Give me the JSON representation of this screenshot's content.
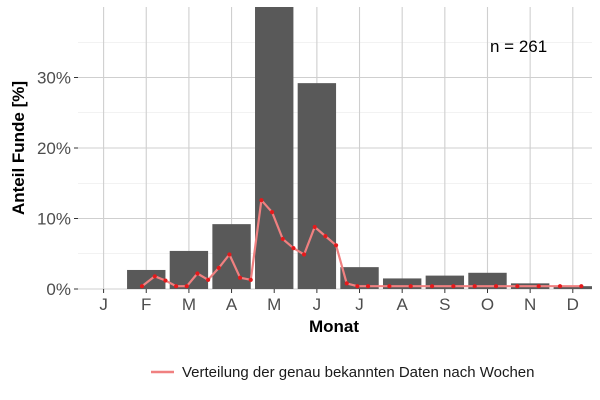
{
  "chart_data": {
    "type": "bar",
    "xlabel": "Monat",
    "ylabel": "Anteil Funde [%]",
    "annotation": "n = 261",
    "categories": [
      "J",
      "F",
      "M",
      "A",
      "M",
      "J",
      "J",
      "A",
      "S",
      "O",
      "N",
      "D"
    ],
    "y_ticks": [
      "0%",
      "10%",
      "20%",
      "30%"
    ],
    "ylim": [
      0,
      40
    ],
    "grid": true,
    "legend_position": "bottom-right",
    "bar_color": "#595959",
    "line_color": "#f08080",
    "point_color": "#e41a1c",
    "bars": {
      "values": [
        0,
        2.7,
        5.4,
        9.2,
        40.0,
        29.2,
        3.1,
        1.5,
        1.9,
        2.3,
        0.8,
        0.4
      ]
    },
    "series": [
      {
        "name": "Verteilung der genau bekannten Daten nach Wochen",
        "x": [
          1.9,
          2.2,
          2.45,
          2.7,
          2.95,
          3.2,
          3.45,
          3.7,
          3.95,
          4.2,
          4.45,
          4.7,
          4.95,
          5.2,
          5.45,
          5.7,
          5.95,
          6.2,
          6.45,
          6.7,
          6.95,
          7.2,
          7.7,
          8.2,
          8.7,
          9.2,
          9.7,
          10.2,
          10.7,
          11.2,
          11.7,
          12.2
        ],
        "y": [
          0.4,
          1.8,
          1.2,
          0.4,
          0.4,
          2.2,
          1.3,
          3.0,
          4.9,
          1.6,
          1.3,
          12.6,
          10.9,
          7.1,
          5.8,
          4.9,
          8.8,
          7.5,
          6.2,
          0.8,
          0.4,
          0.4,
          0.4,
          0.4,
          0.4,
          0.4,
          0.4,
          0.4,
          0.4,
          0.4,
          0.4,
          0.4
        ]
      }
    ]
  }
}
